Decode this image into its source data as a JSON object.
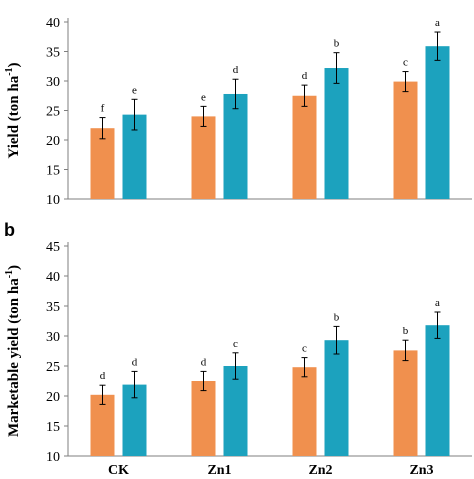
{
  "colors": {
    "series_a": "#F0904E",
    "series_b": "#1CA2BE",
    "axis": "#7f7f7f"
  },
  "chart_data": [
    {
      "type": "bar",
      "panel_label": "",
      "ylabel": "Yield (ton ha",
      "ylabel_sup": "-1",
      "ylabel_close": ")",
      "ylim": [
        10,
        40
      ],
      "yticks": [
        10,
        15,
        20,
        25,
        30,
        35,
        40
      ],
      "categories": [
        "CK",
        "Zn1",
        "Zn2",
        "Zn3"
      ],
      "show_category_labels": false,
      "series": [
        {
          "values": [
            22.0,
            24.0,
            27.5,
            29.9
          ],
          "errors": [
            1.8,
            1.7,
            1.8,
            1.7
          ],
          "letters": [
            "f",
            "e",
            "d",
            "c"
          ]
        },
        {
          "values": [
            24.3,
            27.8,
            32.2,
            35.9
          ],
          "errors": [
            2.6,
            2.5,
            2.6,
            2.4
          ],
          "letters": [
            "e",
            "d",
            "b",
            "a"
          ]
        }
      ]
    },
    {
      "type": "bar",
      "panel_label": "b",
      "ylabel": "Marketable yield (ton ha",
      "ylabel_sup": "-1",
      "ylabel_close": ")",
      "ylim": [
        10,
        45
      ],
      "yticks": [
        10,
        15,
        20,
        25,
        30,
        35,
        40,
        45
      ],
      "categories": [
        "CK",
        "Zn1",
        "Zn2",
        "Zn3"
      ],
      "show_category_labels": true,
      "series": [
        {
          "values": [
            20.2,
            22.5,
            24.8,
            27.6
          ],
          "errors": [
            1.6,
            1.6,
            1.6,
            1.7
          ],
          "letters": [
            "d",
            "d",
            "c",
            "b"
          ]
        },
        {
          "values": [
            21.9,
            25.0,
            29.3,
            31.8
          ],
          "errors": [
            2.2,
            2.2,
            2.3,
            2.2
          ],
          "letters": [
            "d",
            "c",
            "b",
            "a"
          ]
        }
      ]
    }
  ]
}
